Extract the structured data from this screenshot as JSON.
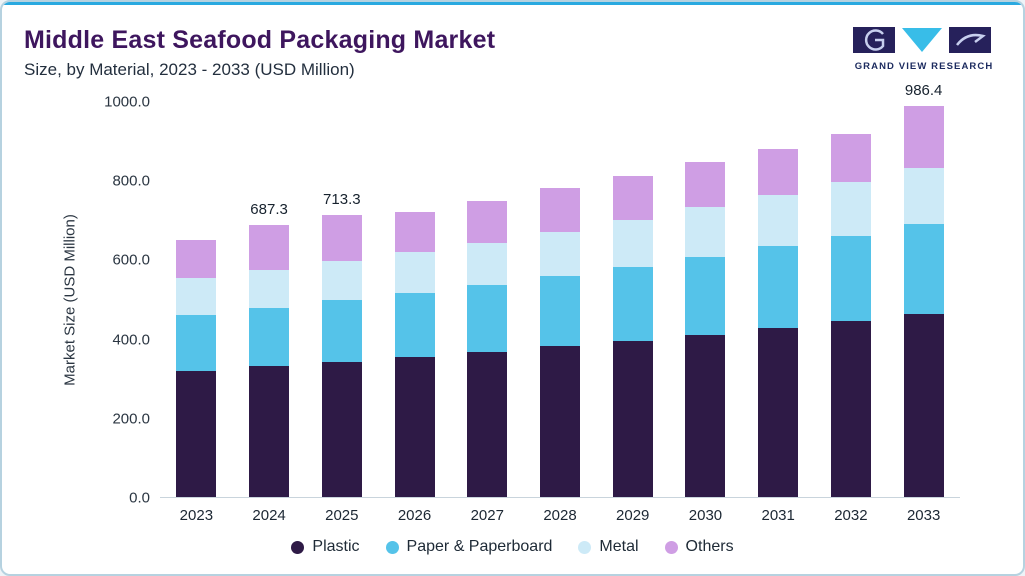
{
  "header": {
    "title": "Middle East Seafood Packaging Market",
    "subtitle": "Size, by Material, 2023 - 2033 (USD Million)"
  },
  "logo": {
    "text": "GRAND VIEW RESEARCH"
  },
  "colors": {
    "accent_line": "#2aa9e0",
    "title": "#3e165e",
    "logo_navy": "#26215b",
    "logo_cyan": "#38bde8"
  },
  "chart_data": {
    "type": "bar",
    "stacked": true,
    "title": "Middle East Seafood Packaging Market Size, by Material, 2023 - 2033 (USD Million)",
    "xlabel": "",
    "ylabel": "Market Size (USD Million)",
    "ylim": [
      0,
      1000
    ],
    "yticks": [
      0,
      200,
      400,
      600,
      800,
      1000
    ],
    "ytick_labels": [
      "0.0",
      "200.0",
      "400.0",
      "600.0",
      "800.0",
      "1000.0"
    ],
    "grid": false,
    "legend_position": "bottom",
    "categories": [
      "2023",
      "2024",
      "2025",
      "2026",
      "2027",
      "2028",
      "2029",
      "2030",
      "2031",
      "2032",
      "2033"
    ],
    "series": [
      {
        "name": "Plastic",
        "color": "#2e1a46",
        "values": [
          318,
          330,
          342,
          354,
          366,
          381,
          394,
          410,
          427,
          444,
          462
        ]
      },
      {
        "name": "Paper & Paperboard",
        "color": "#55c3e9",
        "values": [
          142,
          148,
          155,
          161,
          170,
          178,
          188,
          196,
          206,
          216,
          228
        ]
      },
      {
        "name": "Metal",
        "color": "#cdeaf7",
        "values": [
          92,
          95,
          98,
          103,
          106,
          111,
          117,
          126,
          130,
          136,
          141
        ]
      },
      {
        "name": "Others",
        "color": "#cf9ee4",
        "values": [
          98,
          114.3,
          118.3,
          102,
          106,
          110,
          111,
          113,
          115,
          120,
          155.4
        ]
      }
    ],
    "annotations": {
      "2024": "687.3",
      "2025": "713.3",
      "2033": "986.4"
    }
  }
}
